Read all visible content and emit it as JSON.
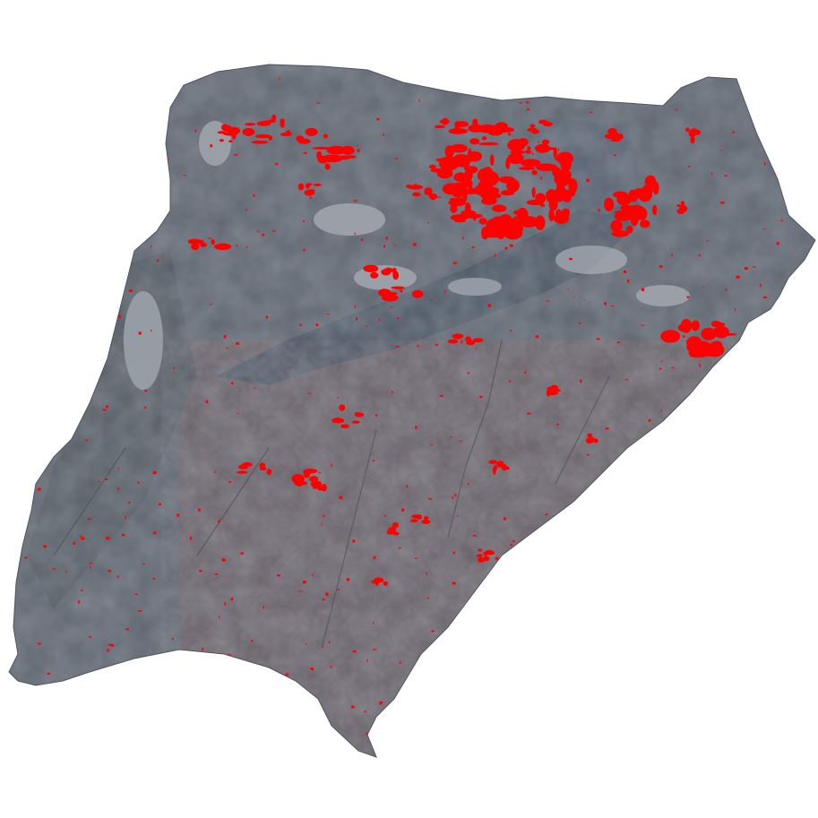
{
  "map": {
    "background_color": "#ffffff",
    "land_base_color": "#5f6670",
    "land_shade_color": "#545b66",
    "wetland_color": "#4b5764",
    "agri_color": "#6e6266",
    "cloud_color": "#c9ced6",
    "burn_color": "#ff0000"
  }
}
